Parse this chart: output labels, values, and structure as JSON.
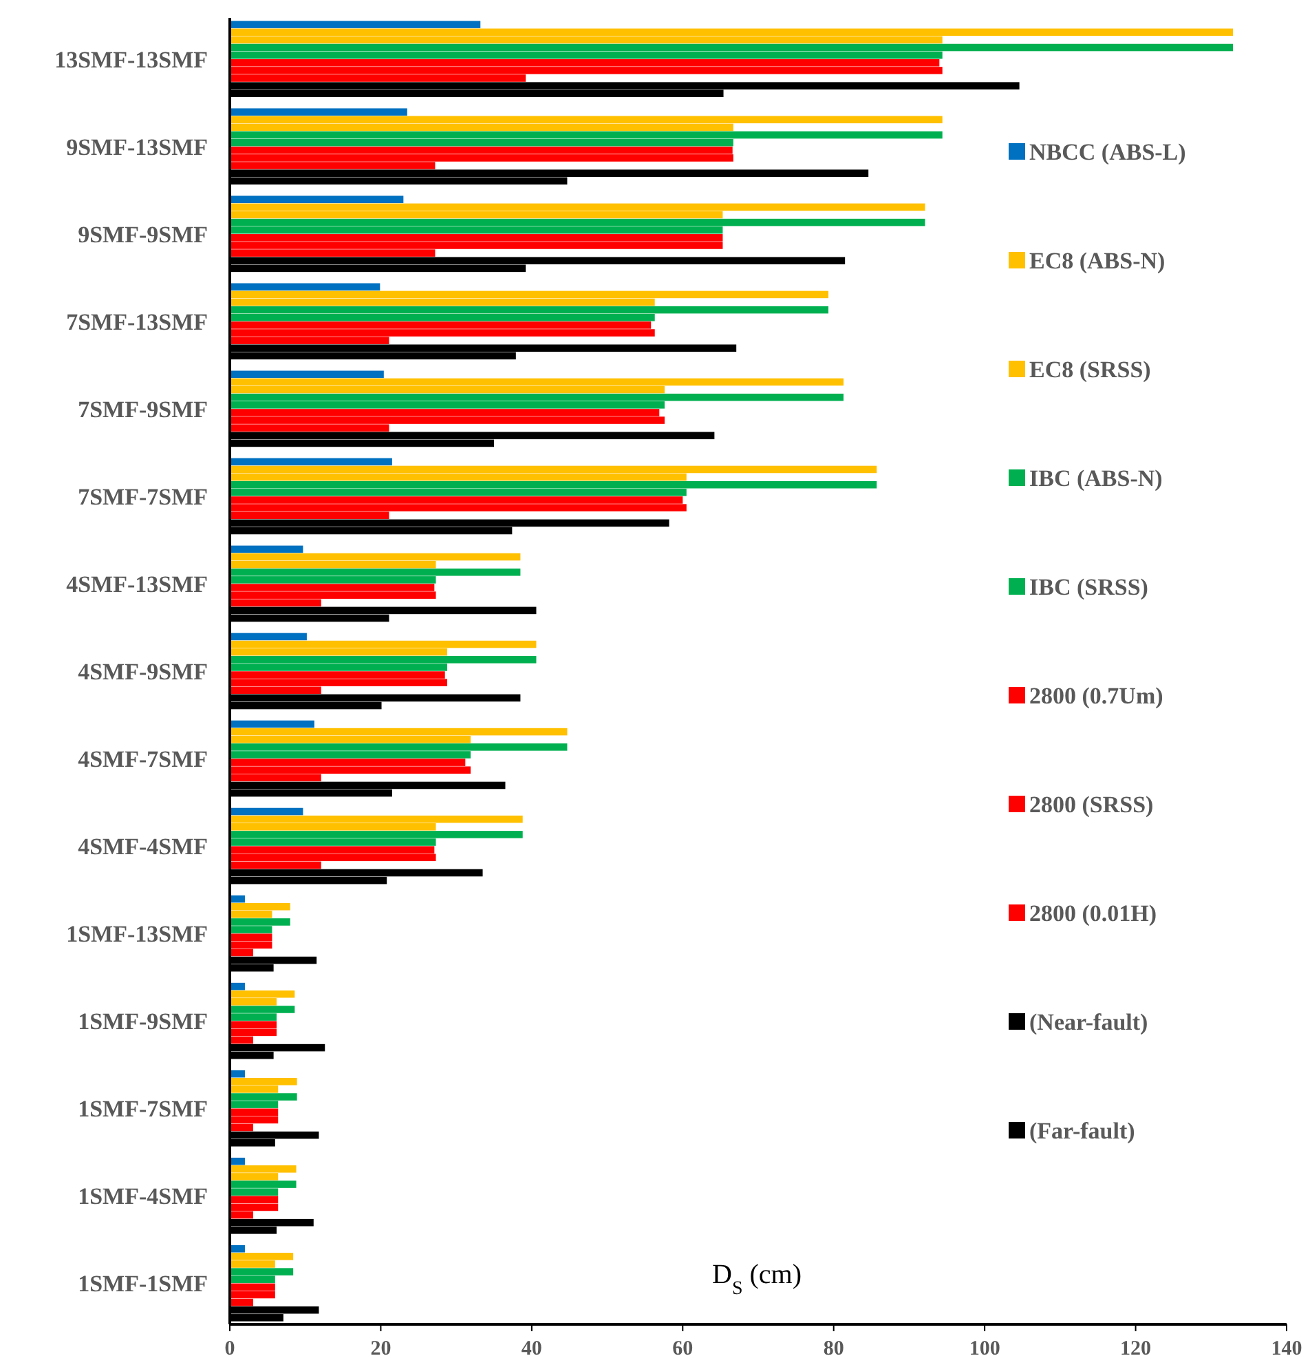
{
  "chart_data": {
    "type": "bar",
    "orientation": "horizontal",
    "xlabel": "D$_{S}$ (cm)",
    "categories": [
      "13SMF-13SMF",
      "9SMF-13SMF",
      "9SMF-9SMF",
      "7SMF-13SMF",
      "7SMF-9SMF",
      "7SMF-7SMF",
      "4SMF-13SMF",
      "4SMF-9SMF",
      "4SMF-7SMF",
      "4SMF-4SMF",
      "1SMF-13SMF",
      "1SMF-9SMF",
      "1SMF-7SMF",
      "1SMF-4SMF",
      "1SMF-1SMF"
    ],
    "xlim": [
      0,
      140
    ],
    "xticks": [
      0,
      20,
      40,
      60,
      80,
      100,
      120,
      140
    ],
    "grid": false,
    "legend": "right",
    "series": [
      {
        "name": "NBCC (ABS-L)",
        "color": "#0070c0",
        "values": [
          33.2,
          23.5,
          23.0,
          19.9,
          20.4,
          21.5,
          9.7,
          10.2,
          11.2,
          9.7,
          2.0,
          2.0,
          2.0,
          2.0,
          2.0
        ]
      },
      {
        "name": "EC8 (ABS-N)",
        "color": "#ffc000",
        "values": [
          132.9,
          94.4,
          92.1,
          79.3,
          81.3,
          85.7,
          38.5,
          40.6,
          44.7,
          38.8,
          8.0,
          8.6,
          8.9,
          8.8,
          8.4
        ]
      },
      {
        "name": "EC8 (SRSS)",
        "color": "#ffc000",
        "values": [
          94.4,
          66.7,
          65.3,
          56.3,
          57.6,
          60.5,
          27.3,
          28.8,
          31.9,
          27.3,
          5.6,
          6.2,
          6.4,
          6.4,
          6.0
        ]
      },
      {
        "name": "IBC (ABS-N)",
        "color": "#00b050",
        "values": [
          132.9,
          94.4,
          92.1,
          79.3,
          81.3,
          85.7,
          38.5,
          40.6,
          44.7,
          38.8,
          8.0,
          8.6,
          8.9,
          8.8,
          8.4
        ]
      },
      {
        "name": "IBC (SRSS)",
        "color": "#00b050",
        "values": [
          94.4,
          66.7,
          65.3,
          56.3,
          57.6,
          60.5,
          27.3,
          28.8,
          31.9,
          27.3,
          5.6,
          6.2,
          6.4,
          6.4,
          6.0
        ]
      },
      {
        "name": "2800 (0.7Um)",
        "color": "#ff0000",
        "values": [
          94.0,
          66.6,
          65.3,
          55.8,
          56.9,
          60.0,
          27.1,
          28.5,
          31.2,
          27.1,
          5.6,
          6.2,
          6.4,
          6.4,
          6.0
        ]
      },
      {
        "name": "2800 (SRSS)",
        "color": "#ff0000",
        "values": [
          94.4,
          66.7,
          65.3,
          56.3,
          57.6,
          60.5,
          27.3,
          28.8,
          31.9,
          27.3,
          5.6,
          6.2,
          6.4,
          6.4,
          6.0
        ]
      },
      {
        "name": "2800 (0.01H)",
        "color": "#ff0000",
        "values": [
          39.2,
          27.2,
          27.2,
          21.1,
          21.1,
          21.1,
          12.1,
          12.1,
          12.1,
          12.1,
          3.1,
          3.1,
          3.1,
          3.1,
          3.1
        ]
      },
      {
        "name": "(Near-fault)",
        "color": "#000000",
        "values": [
          104.6,
          84.6,
          81.5,
          67.1,
          64.2,
          58.2,
          40.6,
          38.5,
          36.5,
          33.5,
          11.5,
          12.6,
          11.8,
          11.1,
          11.8
        ]
      },
      {
        "name": "(Far-fault)",
        "color": "#000000",
        "values": [
          65.4,
          44.7,
          39.2,
          37.9,
          35.0,
          37.4,
          21.1,
          20.1,
          21.5,
          20.8,
          5.8,
          5.8,
          6.0,
          6.2,
          7.1
        ]
      }
    ]
  }
}
